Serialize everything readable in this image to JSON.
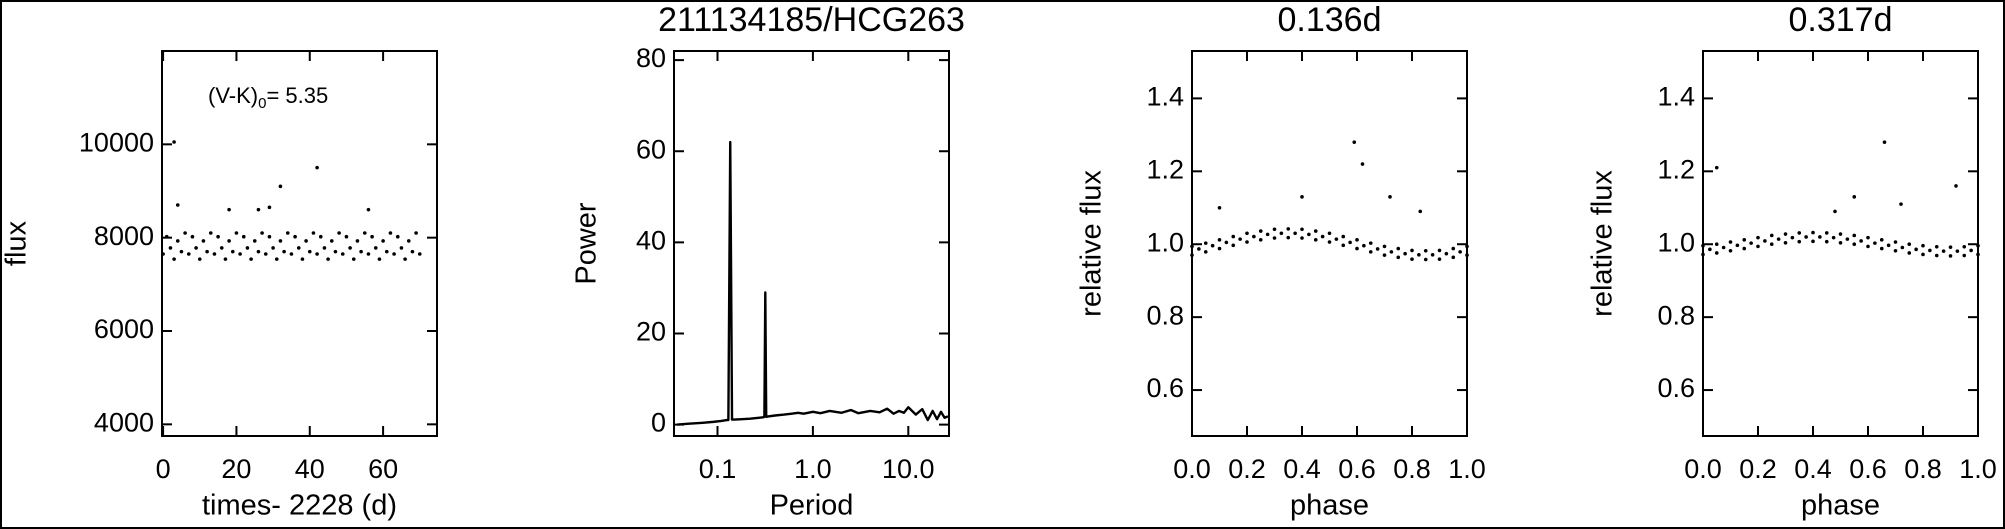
{
  "chart_data": [
    {
      "type": "scatter",
      "xlabel": "times- 2228 (d)",
      "ylabel": "flux",
      "annotation": {
        "text": "(V-K)",
        "subscript": "0",
        "value_text": "= 5.35"
      },
      "color": "#000000",
      "xlim": [
        -0.3,
        74.7
      ],
      "ylim": [
        3750,
        12000
      ],
      "xticks": [
        0,
        20,
        40,
        60
      ],
      "yticks": [
        4000,
        6000,
        8000,
        10000
      ],
      "x": [
        0,
        1,
        2,
        3,
        4,
        5,
        6,
        7,
        8,
        9,
        10,
        11,
        12,
        13,
        14,
        15,
        16,
        17,
        18,
        19,
        20,
        21,
        22,
        23,
        24,
        25,
        26,
        27,
        28,
        29,
        30,
        31,
        32,
        33,
        34,
        35,
        36,
        37,
        38,
        39,
        40,
        41,
        42,
        43,
        44,
        45,
        46,
        47,
        48,
        49,
        50,
        51,
        52,
        53,
        54,
        55,
        56,
        57,
        58,
        59,
        60,
        61,
        62,
        63,
        64,
        65,
        66,
        67,
        68,
        69,
        70,
        3,
        4,
        18,
        26,
        29,
        32,
        42,
        56
      ],
      "values": [
        7650,
        8020,
        7780,
        7540,
        7930,
        7700,
        8100,
        7650,
        8020,
        7780,
        7540,
        7930,
        7700,
        8100,
        7650,
        8020,
        7780,
        7540,
        7930,
        7700,
        8100,
        7650,
        8020,
        7780,
        7540,
        7930,
        7700,
        8100,
        7650,
        8020,
        7780,
        7540,
        7930,
        7700,
        8100,
        7650,
        8020,
        7780,
        7540,
        7930,
        7700,
        8100,
        7650,
        8020,
        7780,
        7540,
        7930,
        7700,
        8100,
        7650,
        8020,
        7780,
        7540,
        7930,
        7700,
        8100,
        7650,
        8020,
        7780,
        7540,
        7930,
        7700,
        8100,
        7650,
        8020,
        7780,
        7540,
        7930,
        7700,
        8100,
        7650,
        10050,
        8700,
        8600,
        8600,
        8650,
        9100,
        9500,
        8600
      ]
    },
    {
      "type": "line",
      "title": "211134185/HCG263",
      "xlabel": "Period",
      "ylabel": "Power",
      "color": "#000000",
      "xscale": "log",
      "xlim": [
        0.035,
        26.7
      ],
      "ylim": [
        -2.5,
        82
      ],
      "xticks": [
        0.1,
        {
          "value": 1,
          "label": "1.0"
        },
        {
          "value": 10,
          "label": "10.0"
        }
      ],
      "yticks": [
        0,
        20,
        40,
        60,
        80
      ],
      "x": [
        0.038,
        0.05,
        0.07,
        0.09,
        0.11,
        0.125,
        0.13,
        0.136,
        0.142,
        0.15,
        0.18,
        0.22,
        0.27,
        0.3,
        0.31,
        0.317,
        0.324,
        0.34,
        0.4,
        0.5,
        0.6,
        0.7,
        0.8,
        1.0,
        1.2,
        1.5,
        2,
        2.5,
        3,
        4,
        5,
        6,
        7,
        8,
        9,
        10,
        12,
        14,
        16,
        18,
        20,
        22,
        24,
        26
      ],
      "values": [
        0,
        0.2,
        0.4,
        0.6,
        0.8,
        1.0,
        1.0,
        62,
        1.1,
        1.1,
        1.2,
        1.3,
        1.5,
        1.6,
        1.7,
        29,
        1.7,
        1.8,
        2.0,
        2.2,
        2.4,
        2.6,
        2.4,
        2.8,
        2.5,
        3.0,
        2.6,
        3.2,
        2.5,
        3.0,
        2.7,
        3.5,
        2.4,
        3.0,
        2.6,
        3.8,
        2.2,
        3.4,
        1.0,
        3.0,
        1.2,
        2.8,
        1.5,
        1.8
      ]
    },
    {
      "type": "scatter",
      "title": "0.136d",
      "xlabel": "phase",
      "ylabel": "relative flux",
      "color": "#000000",
      "xlim": [
        0,
        1
      ],
      "ylim": [
        0.474,
        1.53
      ],
      "xticks": [
        {
          "value": 0,
          "label": "0.0"
        },
        0.2,
        0.4,
        0.6,
        0.8,
        {
          "value": 1,
          "label": "1.0"
        }
      ],
      "yticks": [
        0.6,
        0.8,
        {
          "value": 1,
          "label": "1.0"
        },
        1.2,
        1.4
      ],
      "x": [
        0,
        0.05,
        0.1,
        0.15,
        0.2,
        0.25,
        0.3,
        0.35,
        0.4,
        0.45,
        0.5,
        0.55,
        0.6,
        0.65,
        0.7,
        0.75,
        0.8,
        0.85,
        0.9,
        0.95,
        1,
        0.025,
        0.075,
        0.125,
        0.175,
        0.225,
        0.275,
        0.325,
        0.375,
        0.425,
        0.475,
        0.525,
        0.575,
        0.625,
        0.675,
        0.725,
        0.775,
        0.825,
        0.875,
        0.925,
        0.975,
        0,
        0.05,
        0.1,
        0.15,
        0.2,
        0.25,
        0.3,
        0.35,
        0.4,
        0.45,
        0.5,
        0.55,
        0.6,
        0.65,
        0.7,
        0.75,
        0.8,
        0.85,
        0.9,
        0.95,
        1,
        0.59,
        0.62,
        0.4,
        0.72,
        0.1,
        0.83
      ],
      "values": [
        0.994,
        1.003,
        1.012,
        1.021,
        1.03,
        1.036,
        1.041,
        1.042,
        1.041,
        1.036,
        1.03,
        1.021,
        1.012,
        1.003,
        0.994,
        0.988,
        0.983,
        0.982,
        0.983,
        0.988,
        0.994,
        0.987,
        0.996,
        1.005,
        1.014,
        1.021,
        1.027,
        1.03,
        1.03,
        1.027,
        1.021,
        1.014,
        1.005,
        0.996,
        0.987,
        0.979,
        0.974,
        0.971,
        0.971,
        0.974,
        0.979,
        0.97,
        0.979,
        0.988,
        0.997,
        1.006,
        1.012,
        1.017,
        1.018,
        1.017,
        1.012,
        1.006,
        0.997,
        0.988,
        0.979,
        0.97,
        0.964,
        0.959,
        0.958,
        0.959,
        0.964,
        0.97,
        1.28,
        1.22,
        1.13,
        1.13,
        1.1,
        1.09
      ]
    },
    {
      "type": "scatter",
      "title": "0.317d",
      "xlabel": "phase",
      "ylabel": "relative flux",
      "color": "#000000",
      "xlim": [
        0,
        1
      ],
      "ylim": [
        0.474,
        1.53
      ],
      "xticks": [
        {
          "value": 0,
          "label": "0.0"
        },
        0.2,
        0.4,
        0.6,
        0.8,
        {
          "value": 1,
          "label": "1.0"
        }
      ],
      "yticks": [
        0.6,
        0.8,
        {
          "value": 1,
          "label": "1.0"
        },
        1.2,
        1.4
      ],
      "x": [
        0,
        0.05,
        0.1,
        0.15,
        0.2,
        0.25,
        0.3,
        0.35,
        0.4,
        0.45,
        0.5,
        0.55,
        0.6,
        0.65,
        0.7,
        0.75,
        0.8,
        0.85,
        0.9,
        0.95,
        1,
        0.025,
        0.075,
        0.125,
        0.175,
        0.225,
        0.275,
        0.325,
        0.375,
        0.425,
        0.475,
        0.525,
        0.575,
        0.625,
        0.675,
        0.725,
        0.775,
        0.825,
        0.875,
        0.925,
        0.975,
        0,
        0.05,
        0.1,
        0.15,
        0.2,
        0.25,
        0.3,
        0.35,
        0.4,
        0.45,
        0.5,
        0.55,
        0.6,
        0.65,
        0.7,
        0.75,
        0.8,
        0.85,
        0.9,
        0.95,
        1,
        0.66,
        0.05,
        0.92,
        0.55,
        0.72,
        0.48
      ],
      "values": [
        0.996,
        1.0,
        1.006,
        1.012,
        1.018,
        1.024,
        1.028,
        1.031,
        1.032,
        1.031,
        1.028,
        1.024,
        1.018,
        1.012,
        1.006,
        1.0,
        0.996,
        0.993,
        0.992,
        0.993,
        0.996,
        0.986,
        0.991,
        0.997,
        1.003,
        1.009,
        1.014,
        1.018,
        1.02,
        1.02,
        1.018,
        1.014,
        1.009,
        1.003,
        0.997,
        0.991,
        0.986,
        0.983,
        0.981,
        0.981,
        0.983,
        0.972,
        0.976,
        0.982,
        0.988,
        0.994,
        1.0,
        1.004,
        1.007,
        1.008,
        1.007,
        1.004,
        1.0,
        0.994,
        0.988,
        0.982,
        0.976,
        0.972,
        0.969,
        0.968,
        0.969,
        0.972,
        1.28,
        1.21,
        1.16,
        1.13,
        1.11,
        1.09
      ]
    }
  ]
}
